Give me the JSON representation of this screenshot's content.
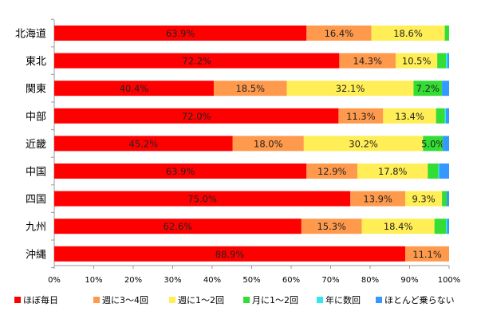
{
  "colors": {
    "daily": "#ff0000",
    "weekly_3_4": "#ff9a4d",
    "weekly_1_2": "#ffee55",
    "monthly_1_2": "#33dd33",
    "yearly_few": "#33e6ee",
    "rarely": "#3399ff",
    "axis": "#999999",
    "tick": "#888888"
  },
  "chart_data": {
    "type": "bar",
    "orientation": "horizontal",
    "stacked": true,
    "categories": [
      "北海道",
      "東北",
      "関東",
      "中部",
      "近畿",
      "中国",
      "四国",
      "九州",
      "沖縄"
    ],
    "series": [
      {
        "name": "ほぼ毎日",
        "color_key": "daily",
        "values": [
          63.9,
          72.2,
          40.4,
          72.0,
          45.2,
          63.9,
          75.0,
          62.6,
          88.9
        ],
        "labels": [
          "63.9%",
          "72.2%",
          "40.4%",
          "72.0%",
          "45.2%",
          "63.9%",
          "75.0%",
          "62.6%",
          "88.9%"
        ]
      },
      {
        "name": "週に3～4回",
        "color_key": "weekly_3_4",
        "values": [
          16.4,
          14.3,
          18.5,
          11.3,
          18.0,
          12.9,
          13.9,
          15.3,
          11.1
        ],
        "labels": [
          "16.4%",
          "14.3%",
          "18.5%",
          "11.3%",
          "18.0%",
          "12.9%",
          "13.9%",
          "15.3%",
          "11.1%"
        ]
      },
      {
        "name": "週に1～2回",
        "color_key": "weekly_1_2",
        "values": [
          18.6,
          10.5,
          32.1,
          13.4,
          30.2,
          17.8,
          9.3,
          18.4,
          0
        ],
        "labels": [
          "18.6%",
          "10.5%",
          "32.1%",
          "13.4%",
          "30.2%",
          "17.8%",
          "9.3%",
          "18.4%",
          ""
        ]
      },
      {
        "name": "月に1～2回",
        "color_key": "monthly_1_2",
        "values": [
          1.1,
          2.2,
          7.2,
          2.2,
          5.0,
          2.7,
          1.2,
          2.9,
          0
        ],
        "labels": [
          "",
          "",
          "7.2%",
          "",
          "5.0%",
          "",
          "",
          "",
          ""
        ]
      },
      {
        "name": "年に数回",
        "color_key": "yearly_few",
        "values": [
          0,
          0.4,
          0,
          0.3,
          0,
          0.2,
          0,
          0.3,
          0
        ],
        "labels": [
          "",
          "",
          "",
          "",
          "",
          "",
          "",
          "",
          ""
        ]
      },
      {
        "name": "ほとんど乗らない",
        "color_key": "rarely",
        "values": [
          0,
          0.4,
          1.8,
          0.8,
          1.6,
          2.5,
          0.6,
          0.5,
          0
        ],
        "labels": [
          "",
          "",
          "",
          "",
          "",
          "",
          "",
          "",
          ""
        ]
      }
    ],
    "xlim": [
      0,
      100
    ],
    "x_ticks": [
      0,
      10,
      20,
      30,
      40,
      50,
      60,
      70,
      80,
      90,
      100
    ],
    "x_tick_labels": [
      "0%",
      "10%",
      "20%",
      "30%",
      "40%",
      "50%",
      "60%",
      "70%",
      "80%",
      "90%",
      "100%"
    ],
    "grid": false,
    "legend_position": "bottom"
  }
}
